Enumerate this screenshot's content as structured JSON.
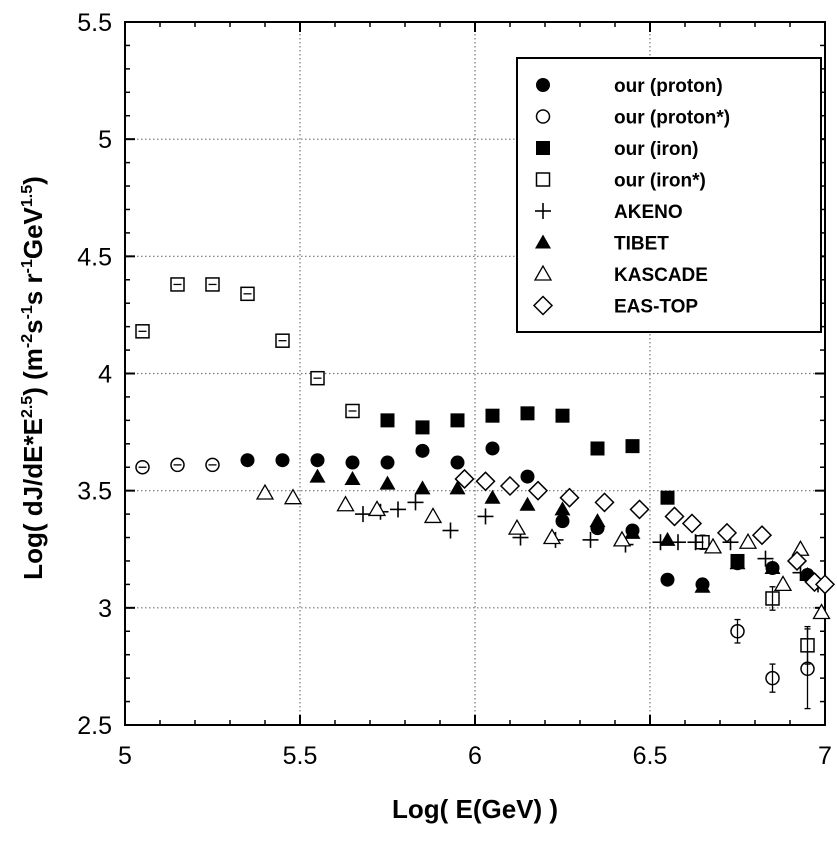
{
  "chart_data": {
    "type": "scatter",
    "xlabel": "Log( E(GeV) )",
    "ylabel_parts": [
      "Log(  dJ/dE*E",
      "2.5",
      ")     (m",
      "-2",
      "s",
      "-1",
      "s r",
      "-1",
      "GeV",
      "1.5",
      ")"
    ],
    "xlim": [
      5,
      7
    ],
    "ylim": [
      2.5,
      5.5
    ],
    "x_ticks": [
      "5",
      "5.5",
      "6",
      "6.5",
      "7"
    ],
    "y_ticks": [
      "2.5",
      "3",
      "3.5",
      "4",
      "4.5",
      "5",
      "5.5"
    ],
    "grid": true,
    "legend_position": "top-right",
    "series": [
      {
        "name": "our   (proton)",
        "marker": "circle-filled",
        "points": [
          [
            5.35,
            3.63
          ],
          [
            5.45,
            3.63
          ],
          [
            5.55,
            3.63
          ],
          [
            5.65,
            3.62
          ],
          [
            5.75,
            3.62
          ],
          [
            5.85,
            3.67
          ],
          [
            5.95,
            3.62
          ],
          [
            6.05,
            3.68
          ],
          [
            6.15,
            3.56
          ],
          [
            6.25,
            3.37
          ],
          [
            6.35,
            3.34
          ],
          [
            6.45,
            3.33
          ],
          [
            6.55,
            3.12
          ],
          [
            6.65,
            3.1
          ],
          [
            6.75,
            3.19
          ],
          [
            6.85,
            3.17
          ],
          [
            6.95,
            3.14
          ]
        ]
      },
      {
        "name": "our   (proton*)",
        "marker": "circle-open",
        "points": [
          [
            5.05,
            3.6,
            0
          ],
          [
            5.15,
            3.61,
            0
          ],
          [
            5.25,
            3.61,
            0
          ],
          [
            6.75,
            2.9,
            0.05
          ],
          [
            6.85,
            2.7,
            0.06
          ],
          [
            6.95,
            2.74,
            0.17
          ]
        ]
      },
      {
        "name": "our   (iron)",
        "marker": "square-filled",
        "points": [
          [
            5.75,
            3.8
          ],
          [
            5.85,
            3.77
          ],
          [
            5.95,
            3.8
          ],
          [
            6.05,
            3.82
          ],
          [
            6.15,
            3.83
          ],
          [
            6.25,
            3.82
          ],
          [
            6.35,
            3.68
          ],
          [
            6.45,
            3.69
          ],
          [
            6.55,
            3.47
          ],
          [
            6.75,
            3.2
          ]
        ]
      },
      {
        "name": "our   (iron*)",
        "marker": "square-open",
        "points": [
          [
            5.05,
            4.18,
            0
          ],
          [
            5.15,
            4.38,
            0
          ],
          [
            5.25,
            4.38,
            0
          ],
          [
            5.35,
            4.34,
            0
          ],
          [
            5.45,
            4.14,
            0
          ],
          [
            5.55,
            3.98,
            0
          ],
          [
            5.65,
            3.84,
            0
          ],
          [
            6.65,
            3.28,
            0.03
          ],
          [
            6.85,
            3.04,
            0.05
          ],
          [
            6.95,
            2.84,
            0.08
          ]
        ]
      },
      {
        "name": "AKENO",
        "marker": "plus",
        "points": [
          [
            5.68,
            3.4
          ],
          [
            5.73,
            3.41
          ],
          [
            5.78,
            3.42
          ],
          [
            5.83,
            3.45
          ],
          [
            5.93,
            3.33
          ],
          [
            6.03,
            3.39
          ],
          [
            6.13,
            3.3
          ],
          [
            6.23,
            3.29
          ],
          [
            6.33,
            3.29
          ],
          [
            6.43,
            3.27
          ],
          [
            6.53,
            3.28
          ],
          [
            6.58,
            3.28
          ],
          [
            6.63,
            3.28
          ],
          [
            6.73,
            3.28
          ],
          [
            6.83,
            3.21
          ],
          [
            6.93,
            3.15
          ],
          [
            6.98,
            3.1
          ]
        ]
      },
      {
        "name": "TIBET",
        "marker": "triangle-filled",
        "points": [
          [
            5.55,
            3.56
          ],
          [
            5.65,
            3.55
          ],
          [
            5.75,
            3.53
          ],
          [
            5.85,
            3.51
          ],
          [
            5.95,
            3.51
          ],
          [
            6.05,
            3.47
          ],
          [
            6.15,
            3.44
          ],
          [
            6.25,
            3.42
          ],
          [
            6.35,
            3.37
          ],
          [
            6.45,
            3.32
          ],
          [
            6.55,
            3.29
          ],
          [
            6.65,
            3.09
          ],
          [
            6.75,
            3.19
          ],
          [
            6.85,
            3.17
          ],
          [
            6.95,
            3.14
          ]
        ]
      },
      {
        "name": "KASCADE",
        "marker": "triangle-open",
        "points": [
          [
            5.4,
            3.49
          ],
          [
            5.48,
            3.47
          ],
          [
            5.63,
            3.44
          ],
          [
            5.72,
            3.42
          ],
          [
            5.88,
            3.39
          ],
          [
            6.12,
            3.34
          ],
          [
            6.22,
            3.3
          ],
          [
            6.42,
            3.29
          ],
          [
            6.68,
            3.26
          ],
          [
            6.78,
            3.28
          ],
          [
            6.88,
            3.1
          ],
          [
            6.93,
            3.25
          ],
          [
            6.99,
            2.98
          ]
        ]
      },
      {
        "name": "EAS-TOP",
        "marker": "diamond-open",
        "points": [
          [
            5.97,
            3.55
          ],
          [
            6.03,
            3.54
          ],
          [
            6.1,
            3.52
          ],
          [
            6.18,
            3.5
          ],
          [
            6.27,
            3.47
          ],
          [
            6.37,
            3.45
          ],
          [
            6.47,
            3.42
          ],
          [
            6.57,
            3.39
          ],
          [
            6.62,
            3.36
          ],
          [
            6.72,
            3.32
          ],
          [
            6.82,
            3.31
          ],
          [
            6.92,
            3.2
          ],
          [
            6.97,
            3.11
          ],
          [
            7.0,
            3.1
          ]
        ]
      }
    ]
  }
}
